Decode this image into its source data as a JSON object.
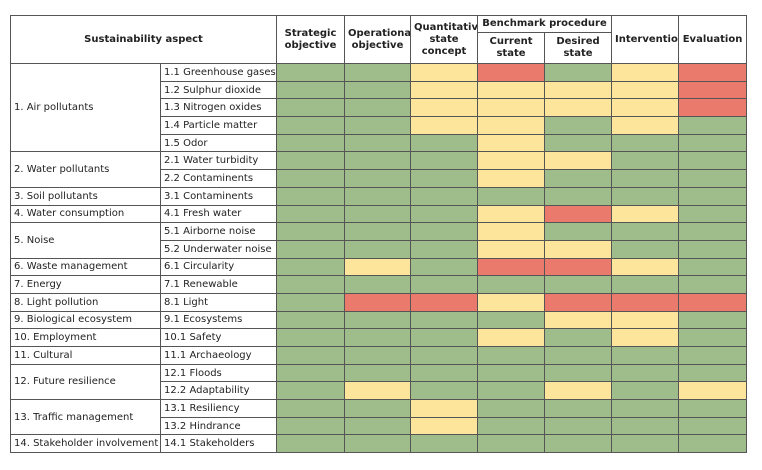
{
  "table": {
    "header": {
      "aspect": "Sustainability aspect",
      "columns": [
        "Strategic objective",
        "Operational objective",
        "Quantitative state concept"
      ],
      "benchmark": "Benchmark procedure",
      "benchmark_columns": [
        "Current state",
        "Desired state"
      ],
      "after": [
        "Intervention",
        "Evaluation"
      ]
    },
    "colors": {
      "g": "#9fbd8b",
      "y": "#fde59b",
      "r": "#ea7a6b"
    },
    "aspects": [
      {
        "label": "1. Air pollutants",
        "items": [
          {
            "label": "1.1 Greenhouse gases",
            "cells": [
              "g",
              "g",
              "y",
              "r",
              "g",
              "y",
              "r"
            ]
          },
          {
            "label": "1.2 Sulphur dioxide",
            "cells": [
              "g",
              "g",
              "y",
              "y",
              "y",
              "y",
              "r"
            ]
          },
          {
            "label": "1.3 Nitrogen oxides",
            "cells": [
              "g",
              "g",
              "y",
              "y",
              "y",
              "y",
              "r"
            ]
          },
          {
            "label": "1.4 Particle matter",
            "cells": [
              "g",
              "g",
              "y",
              "y",
              "g",
              "y",
              "g"
            ]
          },
          {
            "label": "1.5 Odor",
            "cells": [
              "g",
              "g",
              "g",
              "y",
              "g",
              "g",
              "g"
            ]
          }
        ]
      },
      {
        "label": "2. Water pollutants",
        "items": [
          {
            "label": "2.1 Water turbidity",
            "cells": [
              "g",
              "g",
              "g",
              "y",
              "y",
              "g",
              "g"
            ]
          },
          {
            "label": "2.2 Contaminents",
            "cells": [
              "g",
              "g",
              "g",
              "y",
              "g",
              "g",
              "g"
            ]
          }
        ]
      },
      {
        "label": "3. Soil pollutants",
        "items": [
          {
            "label": "3.1 Contaminents",
            "cells": [
              "g",
              "g",
              "g",
              "g",
              "g",
              "g",
              "g"
            ]
          }
        ]
      },
      {
        "label": "4. Water consumption",
        "items": [
          {
            "label": "4.1 Fresh water",
            "cells": [
              "g",
              "g",
              "g",
              "y",
              "r",
              "y",
              "g"
            ]
          }
        ]
      },
      {
        "label": "5. Noise",
        "items": [
          {
            "label": "5.1 Airborne noise",
            "cells": [
              "g",
              "g",
              "g",
              "y",
              "g",
              "g",
              "g"
            ]
          },
          {
            "label": "5.2 Underwater noise",
            "cells": [
              "g",
              "g",
              "g",
              "y",
              "y",
              "g",
              "g"
            ]
          }
        ]
      },
      {
        "label": "6. Waste management",
        "items": [
          {
            "label": "6.1 Circularity",
            "cells": [
              "g",
              "y",
              "g",
              "r",
              "r",
              "y",
              "g"
            ]
          }
        ]
      },
      {
        "label": "7. Energy",
        "items": [
          {
            "label": "7.1 Renewable",
            "cells": [
              "g",
              "g",
              "g",
              "g",
              "g",
              "g",
              "g"
            ]
          }
        ]
      },
      {
        "label": "8. Light pollution",
        "items": [
          {
            "label": "8.1 Light",
            "cells": [
              "g",
              "r",
              "r",
              "y",
              "r",
              "r",
              "r"
            ]
          }
        ]
      },
      {
        "label": "9. Biological ecosystem",
        "items": [
          {
            "label": "9.1 Ecosystems",
            "cells": [
              "g",
              "g",
              "g",
              "g",
              "y",
              "y",
              "g"
            ]
          }
        ]
      },
      {
        "label": "10. Employment",
        "items": [
          {
            "label": "10.1 Safety",
            "cells": [
              "g",
              "g",
              "g",
              "y",
              "g",
              "y",
              "g"
            ]
          }
        ]
      },
      {
        "label": "11. Cultural",
        "items": [
          {
            "label": "11.1 Archaeology",
            "cells": [
              "g",
              "g",
              "g",
              "g",
              "g",
              "g",
              "g"
            ]
          }
        ]
      },
      {
        "label": "12. Future resilience",
        "items": [
          {
            "label": "12.1 Floods",
            "cells": [
              "g",
              "g",
              "g",
              "g",
              "g",
              "g",
              "g"
            ]
          },
          {
            "label": "12.2 Adaptability",
            "cells": [
              "g",
              "y",
              "g",
              "g",
              "y",
              "g",
              "y"
            ]
          }
        ]
      },
      {
        "label": "13. Traffic management",
        "items": [
          {
            "label": "13.1 Resiliency",
            "cells": [
              "g",
              "g",
              "y",
              "g",
              "g",
              "g",
              "g"
            ]
          },
          {
            "label": "13.2 Hindrance",
            "cells": [
              "g",
              "g",
              "y",
              "g",
              "g",
              "g",
              "g"
            ]
          }
        ]
      },
      {
        "label": "14. Stakeholder involvement",
        "items": [
          {
            "label": "14.1 Stakeholders",
            "cells": [
              "g",
              "g",
              "g",
              "g",
              "g",
              "g",
              "g"
            ]
          }
        ]
      }
    ]
  }
}
